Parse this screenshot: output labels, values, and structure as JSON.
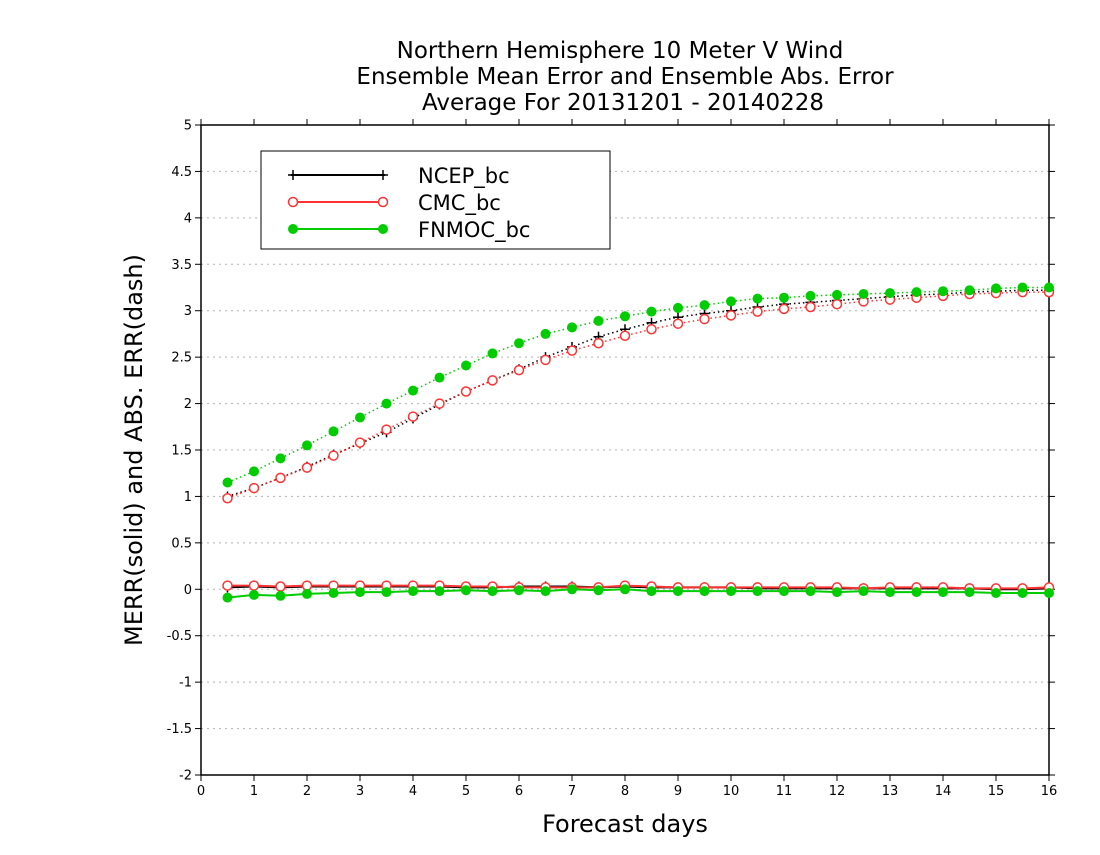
{
  "chart_data": {
    "type": "line",
    "title_lines": [
      "Northern Hemisphere 10 Meter V Wind",
      "Ensemble Mean Error and Ensemble Abs. Error",
      "Average For 20131201 - 20140228"
    ],
    "xlabel": "Forecast days",
    "ylabel": "MERR(solid) and ABS. ERR(dash)",
    "xlim": [
      0,
      16
    ],
    "ylim": [
      -2,
      5
    ],
    "x_ticks": [
      "0",
      "1",
      "2",
      "3",
      "4",
      "5",
      "6",
      "7",
      "8",
      "9",
      "10",
      "11",
      "12",
      "13",
      "14",
      "15",
      "16"
    ],
    "y_ticks": [
      "-2",
      "-1.5",
      "-1",
      "-0.5",
      "0",
      "0.5",
      "1",
      "1.5",
      "2",
      "2.5",
      "3",
      "3.5",
      "4",
      "4.5",
      "5"
    ],
    "y_tick_values": [
      -2,
      -1.5,
      -1,
      -0.5,
      0,
      0.5,
      1,
      1.5,
      2,
      2.5,
      3,
      3.5,
      4,
      4.5,
      5
    ],
    "grid": true,
    "legend_position": "top-left",
    "x": [
      0.5,
      1,
      1.5,
      2,
      2.5,
      3,
      3.5,
      4,
      4.5,
      5,
      5.5,
      6,
      6.5,
      7,
      7.5,
      8,
      8.5,
      9,
      9.5,
      10,
      10.5,
      11,
      11.5,
      12,
      12.5,
      13,
      13.5,
      14,
      14.5,
      15,
      15.5,
      16
    ],
    "series": [
      {
        "name": "NCEP_bc",
        "color": "#000000",
        "marker": "plus",
        "merr": [
          0.02,
          0.03,
          0.02,
          0.03,
          0.03,
          0.03,
          0.03,
          0.03,
          0.03,
          0.02,
          0.02,
          0.03,
          0.03,
          0.03,
          0.02,
          0.03,
          0.02,
          0.02,
          0.02,
          0.02,
          0.01,
          0.01,
          0.01,
          0.01,
          0.01,
          0.01,
          0.01,
          0.01,
          0.01,
          0.0,
          0.0,
          0.01
        ],
        "abs_err": [
          1.0,
          1.09,
          1.2,
          1.32,
          1.45,
          1.57,
          1.69,
          1.84,
          1.99,
          2.13,
          2.25,
          2.37,
          2.5,
          2.61,
          2.72,
          2.8,
          2.87,
          2.93,
          2.97,
          3.0,
          3.04,
          3.07,
          3.09,
          3.11,
          3.13,
          3.15,
          3.17,
          3.18,
          3.2,
          3.21,
          3.22,
          3.22
        ]
      },
      {
        "name": "CMC_bc",
        "color": "#ff3333",
        "marker": "open-circle",
        "merr": [
          0.04,
          0.04,
          0.03,
          0.04,
          0.04,
          0.04,
          0.04,
          0.04,
          0.04,
          0.03,
          0.03,
          0.02,
          0.02,
          0.02,
          0.02,
          0.04,
          0.03,
          0.02,
          0.02,
          0.02,
          0.02,
          0.02,
          0.02,
          0.02,
          0.01,
          0.02,
          0.02,
          0.02,
          0.01,
          0.01,
          0.01,
          0.02
        ],
        "abs_err": [
          0.98,
          1.09,
          1.2,
          1.31,
          1.44,
          1.58,
          1.72,
          1.86,
          2.0,
          2.13,
          2.25,
          2.36,
          2.47,
          2.57,
          2.65,
          2.73,
          2.8,
          2.86,
          2.91,
          2.95,
          2.99,
          3.02,
          3.04,
          3.07,
          3.1,
          3.12,
          3.14,
          3.16,
          3.18,
          3.19,
          3.2,
          3.2
        ]
      },
      {
        "name": "FNMOC_bc",
        "color": "#00cc00",
        "marker": "filled-circle",
        "merr": [
          -0.09,
          -0.06,
          -0.07,
          -0.05,
          -0.04,
          -0.03,
          -0.03,
          -0.02,
          -0.02,
          -0.01,
          -0.02,
          -0.01,
          -0.02,
          0.0,
          -0.01,
          0.0,
          -0.02,
          -0.02,
          -0.02,
          -0.02,
          -0.02,
          -0.02,
          -0.02,
          -0.03,
          -0.02,
          -0.03,
          -0.03,
          -0.03,
          -0.03,
          -0.04,
          -0.04,
          -0.04
        ],
        "abs_err": [
          1.15,
          1.27,
          1.41,
          1.55,
          1.7,
          1.85,
          2.0,
          2.14,
          2.28,
          2.41,
          2.54,
          2.65,
          2.75,
          2.82,
          2.89,
          2.94,
          2.99,
          3.03,
          3.06,
          3.1,
          3.13,
          3.14,
          3.16,
          3.17,
          3.18,
          3.19,
          3.2,
          3.21,
          3.22,
          3.24,
          3.25,
          3.25
        ]
      }
    ]
  }
}
